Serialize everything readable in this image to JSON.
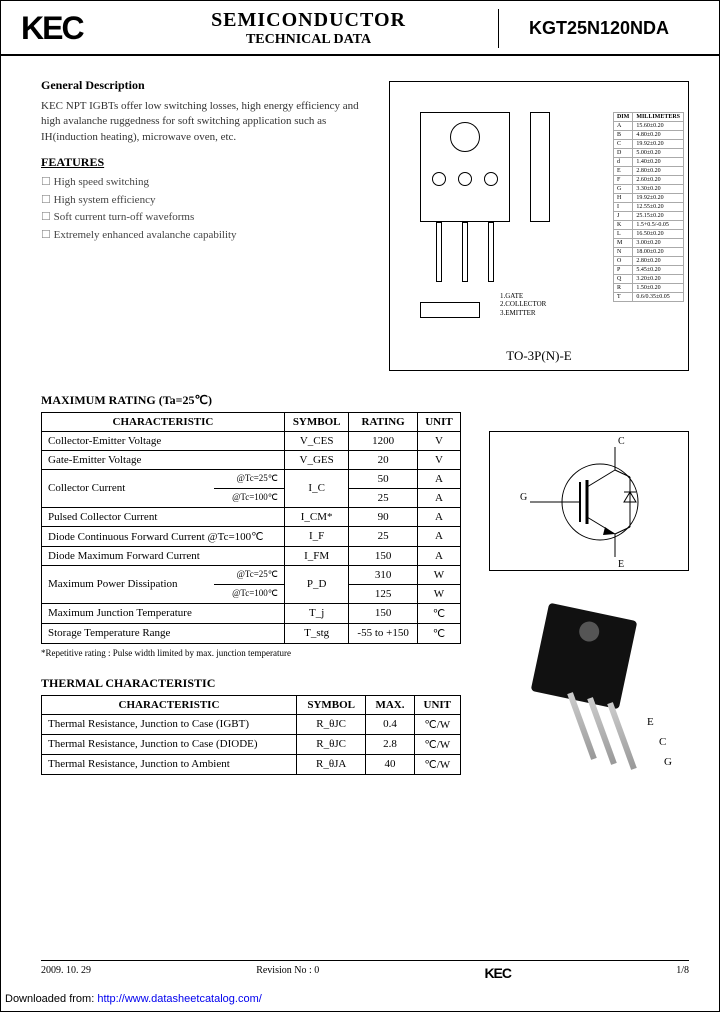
{
  "header": {
    "logo": "KEC",
    "title_main": "SEMICONDUCTOR",
    "title_sub": "TECHNICAL DATA",
    "part_no": "KGT25N120NDA"
  },
  "general": {
    "title": "General Description",
    "text": "KEC NPT IGBTs offer low switching losses, high energy efficiency and high avalanche ruggedness for soft switching application such as IH(induction heating), microwave oven, etc."
  },
  "features": {
    "title": "FEATURES",
    "items": [
      "High speed switching",
      "High system efficiency",
      "Soft current turn-off waveforms",
      "Extremely enhanced avalanche capability"
    ]
  },
  "package": {
    "label": "TO-3P(N)-E",
    "pins": [
      "1.GATE",
      "2.COLLECTOR",
      "3.EMITTER"
    ],
    "dim_header": [
      "DIM",
      "MILLIMETERS"
    ],
    "dims": [
      [
        "A",
        "15.60±0.20"
      ],
      [
        "B",
        "4.80±0.20"
      ],
      [
        "C",
        "19.92±0.20"
      ],
      [
        "D",
        "5.00±0.20"
      ],
      [
        "d",
        "1.40±0.20"
      ],
      [
        "E",
        "2.80±0.20"
      ],
      [
        "F",
        "2.60±0.20"
      ],
      [
        "G",
        "3.30±0.20"
      ],
      [
        "H",
        "19.92±0.20"
      ],
      [
        "I",
        "12.55±0.20"
      ],
      [
        "J",
        "25.15±0.20"
      ],
      [
        "K",
        "1.5+0.5/-0.05"
      ],
      [
        "L",
        "16.50±0.20"
      ],
      [
        "M",
        "3.00±0.20"
      ],
      [
        "N",
        "18.00±0.20"
      ],
      [
        "O",
        "2.80±0.20"
      ],
      [
        "P",
        "5.45±0.20"
      ],
      [
        "Q",
        "3.20±0.20"
      ],
      [
        "R",
        "1.50±0.20"
      ],
      [
        "T",
        "0.6/0.35±0.05"
      ]
    ]
  },
  "max_rating": {
    "title": "MAXIMUM RATING (Ta=25℃)",
    "columns": [
      "CHARACTERISTIC",
      "SYMBOL",
      "RATING",
      "UNIT"
    ],
    "rows": [
      {
        "char": "Collector-Emitter Voltage",
        "sym": "V_CES",
        "rate": "1200",
        "unit": "V",
        "rowspan": 1
      },
      {
        "char": "Gate-Emitter Voltage",
        "sym": "V_GES",
        "rate": "20",
        "unit": "V",
        "rowspan": 1
      },
      {
        "char": "Collector Current",
        "sub": [
          "@Tc=25℃",
          "@Tc=100℃"
        ],
        "sym": "I_C",
        "rate": [
          "50",
          "25"
        ],
        "unit": "A",
        "rowspan": 2
      },
      {
        "char": "Pulsed Collector Current",
        "sym": "I_CM*",
        "rate": "90",
        "unit": "A",
        "rowspan": 1
      },
      {
        "char": "Diode Continuous Forward Current @Tc=100℃",
        "sym": "I_F",
        "rate": "25",
        "unit": "A",
        "rowspan": 1
      },
      {
        "char": "Diode Maximum Forward Current",
        "sym": "I_FM",
        "rate": "150",
        "unit": "A",
        "rowspan": 1
      },
      {
        "char": "Maximum Power Dissipation",
        "sub": [
          "@Tc=25℃",
          "@Tc=100℃"
        ],
        "sym": "P_D",
        "rate": [
          "310",
          "125"
        ],
        "unit": "W",
        "rowspan": 2
      },
      {
        "char": "Maximum Junction Temperature",
        "sym": "T_j",
        "rate": "150",
        "unit": "℃",
        "rowspan": 1
      },
      {
        "char": "Storage Temperature Range",
        "sym": "T_stg",
        "rate": "-55 to +150",
        "unit": "℃",
        "rowspan": 1
      }
    ],
    "footnote": "*Repetitive rating : Pulse width limited by max. junction temperature"
  },
  "thermal": {
    "title": "THERMAL CHARACTERISTIC",
    "columns": [
      "CHARACTERISTIC",
      "SYMBOL",
      "MAX.",
      "UNIT"
    ],
    "rows": [
      [
        "Thermal Resistance, Junction to Case (IGBT)",
        "R_θJC",
        "0.4",
        "℃/W"
      ],
      [
        "Thermal Resistance, Junction to Case (DIODE)",
        "R_θJC",
        "2.8",
        "℃/W"
      ],
      [
        "Thermal Resistance, Junction to Ambient",
        "R_θJA",
        "40",
        "℃/W"
      ]
    ]
  },
  "circuit": {
    "labels": [
      "C",
      "G",
      "E"
    ]
  },
  "photo": {
    "pin_labels": [
      "E",
      "C",
      "G"
    ]
  },
  "footer": {
    "date": "2009. 10. 29",
    "rev": "Revision No : 0",
    "logo": "KEC",
    "page": "1/8"
  },
  "download": {
    "prefix": "Downloaded from: ",
    "url": "http://www.datasheetcatalog.com/"
  },
  "colors": {
    "border": "#000000",
    "text": "#000000",
    "link": "#0000ee",
    "component": "#111111"
  }
}
